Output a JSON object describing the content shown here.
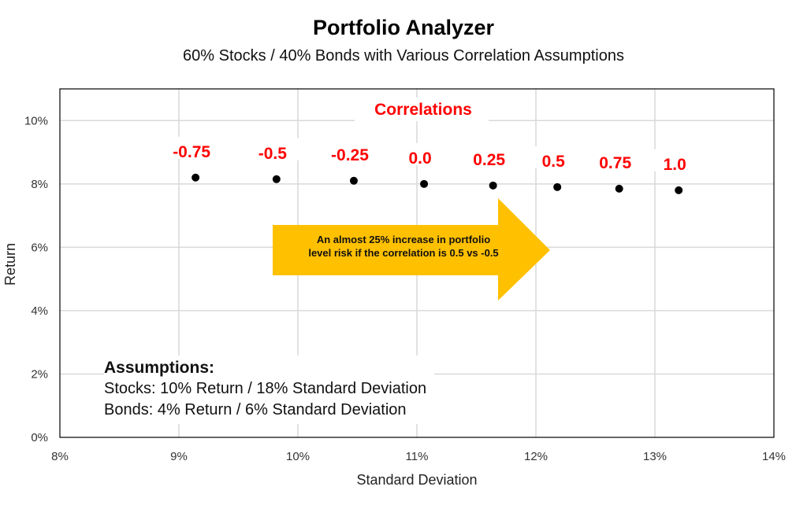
{
  "chart_data": {
    "type": "scatter",
    "title": "Portfolio Analyzer",
    "subtitle": "60% Stocks / 40% Bonds with Various Correlation Assumptions",
    "xlabel": "Standard Deviation",
    "ylabel": "Return",
    "xlim": [
      8,
      14
    ],
    "ylim": [
      0,
      11
    ],
    "x_ticks": [
      "8%",
      "9%",
      "10%",
      "11%",
      "12%",
      "13%",
      "14%"
    ],
    "y_ticks": [
      "0%",
      "2%",
      "4%",
      "6%",
      "8%",
      "10%"
    ],
    "grid": true,
    "points_label": "Correlations",
    "points": [
      {
        "label": "-0.75",
        "x": 9.14,
        "y": 8.2
      },
      {
        "label": "-0.5",
        "x": 9.82,
        "y": 8.15
      },
      {
        "label": "-0.25",
        "x": 10.47,
        "y": 8.1
      },
      {
        "label": "0.0",
        "x": 11.06,
        "y": 8.0
      },
      {
        "label": "0.25",
        "x": 11.64,
        "y": 7.95
      },
      {
        "label": "0.5",
        "x": 12.18,
        "y": 7.9
      },
      {
        "label": "0.75",
        "x": 12.7,
        "y": 7.85
      },
      {
        "label": "1.0",
        "x": 13.2,
        "y": 7.8
      }
    ],
    "annotation": "An almost 25% increase in portfolio level risk if the correlation is 0.5 vs -0.5",
    "annotation_lines": [
      "An almost 25% increase in portfolio",
      "level risk if the correlation is 0.5 vs -0.5"
    ],
    "assumptions": {
      "heading": "Assumptions:",
      "lines": [
        "Stocks: 10% Return / 18% Standard Deviation",
        "Bonds: 4% Return / 6% Standard Deviation"
      ]
    },
    "colors": {
      "points": "#000000",
      "labels": "#ff0000",
      "arrow": "#ffc000",
      "grid": "#d9d9d9",
      "frame": "#000000"
    }
  }
}
